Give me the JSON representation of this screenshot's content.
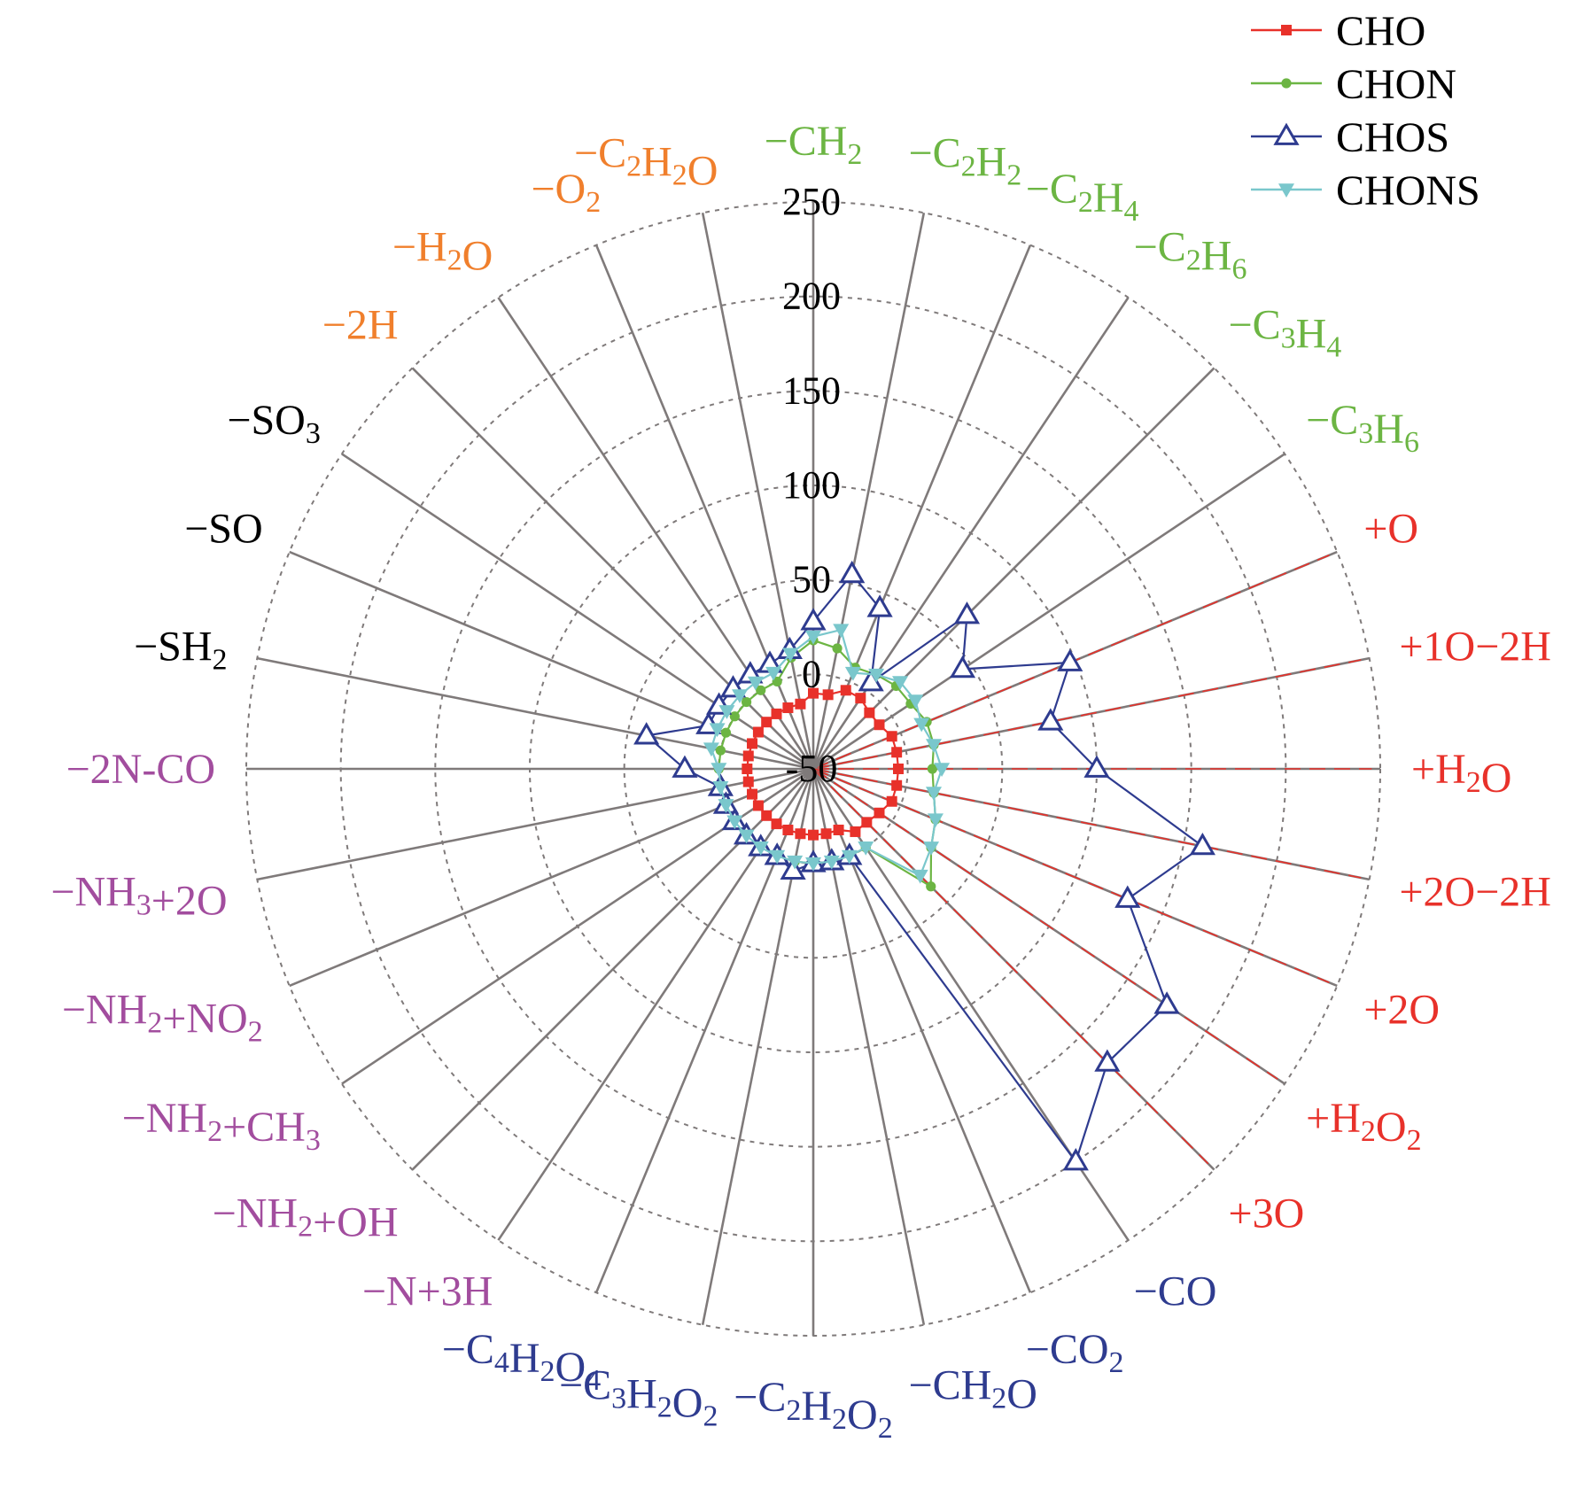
{
  "chart_data": {
    "type": "radar",
    "r_ticks": [
      "-50",
      "0",
      "50",
      "100",
      "150",
      "200",
      "250"
    ],
    "r_range": [
      -50,
      250
    ],
    "grid": true,
    "legend_position": "top-right",
    "colors": {
      "axis": "#7f7a7a",
      "grid": "#7f7a7a",
      "group_red": "#e8312a",
      "group_green": "#6cb543",
      "group_orange": "#f07f2c",
      "group_black": "#000000",
      "group_purple": "#a24d9e",
      "group_blue": "#2e3b8f"
    },
    "categories": [
      {
        "label": "+H2O",
        "parts": [
          [
            "+H",
            ""
          ],
          [
            "2",
            "sub"
          ],
          [
            "O",
            ""
          ]
        ],
        "color": "#e8312a"
      },
      {
        "label": "+1O−2H",
        "parts": [
          [
            "+1O−2H",
            ""
          ]
        ],
        "color": "#e8312a"
      },
      {
        "label": "+O",
        "parts": [
          [
            "+O",
            ""
          ]
        ],
        "color": "#e8312a"
      },
      {
        "label": "−C3H6",
        "parts": [
          [
            "−C",
            ""
          ],
          [
            "3",
            "sub"
          ],
          [
            "H",
            ""
          ],
          [
            "6",
            "sub"
          ]
        ],
        "color": "#6cb543"
      },
      {
        "label": "−C3H4",
        "parts": [
          [
            "−C",
            ""
          ],
          [
            "3",
            "sub"
          ],
          [
            "H",
            ""
          ],
          [
            "4",
            "sub"
          ]
        ],
        "color": "#6cb543"
      },
      {
        "label": "−C2H6",
        "parts": [
          [
            "−C",
            ""
          ],
          [
            "2",
            "sub"
          ],
          [
            "H",
            ""
          ],
          [
            "6",
            "sub"
          ]
        ],
        "color": "#6cb543"
      },
      {
        "label": "−C2H4",
        "parts": [
          [
            "−C",
            ""
          ],
          [
            "2",
            "sub"
          ],
          [
            "H",
            ""
          ],
          [
            "4",
            "sub"
          ]
        ],
        "color": "#6cb543"
      },
      {
        "label": "−C2H2",
        "parts": [
          [
            "−C",
            ""
          ],
          [
            "2",
            "sub"
          ],
          [
            "H",
            ""
          ],
          [
            "2",
            "sub"
          ]
        ],
        "color": "#6cb543"
      },
      {
        "label": "−CH2",
        "parts": [
          [
            "−CH",
            ""
          ],
          [
            "2",
            "sub"
          ]
        ],
        "color": "#6cb543"
      },
      {
        "label": "−C2H2O",
        "parts": [
          [
            "−C",
            ""
          ],
          [
            "2",
            "sub"
          ],
          [
            "H",
            ""
          ],
          [
            "2",
            "sub"
          ],
          [
            "O",
            ""
          ]
        ],
        "color": "#f07f2c"
      },
      {
        "label": "−O2",
        "parts": [
          [
            "−O",
            ""
          ],
          [
            "2",
            "sub"
          ]
        ],
        "color": "#f07f2c"
      },
      {
        "label": "−H2O",
        "parts": [
          [
            "−H",
            ""
          ],
          [
            "2",
            "sub"
          ],
          [
            "O",
            ""
          ]
        ],
        "color": "#f07f2c"
      },
      {
        "label": "−2H",
        "parts": [
          [
            "−2H",
            ""
          ]
        ],
        "color": "#f07f2c"
      },
      {
        "label": "−SO3",
        "parts": [
          [
            "−SO",
            ""
          ],
          [
            "3",
            "sub"
          ]
        ],
        "color": "#000000"
      },
      {
        "label": "−SO",
        "parts": [
          [
            "−SO",
            ""
          ]
        ],
        "color": "#000000"
      },
      {
        "label": "−SH2",
        "parts": [
          [
            "−SH",
            ""
          ],
          [
            "2",
            "sub"
          ]
        ],
        "color": "#000000"
      },
      {
        "label": "−2N-CO",
        "parts": [
          [
            "−2N-CO",
            ""
          ]
        ],
        "color": "#a24d9e"
      },
      {
        "label": "−NH3+2O",
        "parts": [
          [
            "−NH",
            ""
          ],
          [
            "3",
            "sub"
          ],
          [
            "+2O",
            ""
          ]
        ],
        "color": "#a24d9e"
      },
      {
        "label": "−NH2+NO2",
        "parts": [
          [
            "−NH",
            ""
          ],
          [
            "2",
            "sub"
          ],
          [
            "+NO",
            ""
          ],
          [
            "2",
            "sub"
          ]
        ],
        "color": "#a24d9e"
      },
      {
        "label": "−NH2+CH3",
        "parts": [
          [
            "−NH",
            ""
          ],
          [
            "2",
            "sub"
          ],
          [
            "+CH",
            ""
          ],
          [
            "3",
            "sub"
          ]
        ],
        "color": "#a24d9e"
      },
      {
        "label": "−NH2+OH",
        "parts": [
          [
            "−NH",
            ""
          ],
          [
            "2",
            "sub"
          ],
          [
            "+OH",
            ""
          ]
        ],
        "color": "#a24d9e"
      },
      {
        "label": "−N+3H",
        "parts": [
          [
            "−N+3H",
            ""
          ]
        ],
        "color": "#a24d9e"
      },
      {
        "label": "−C4H2O4",
        "parts": [
          [
            "−C",
            ""
          ],
          [
            "4",
            "sub"
          ],
          [
            "H",
            ""
          ],
          [
            "2",
            "sub"
          ],
          [
            "O",
            ""
          ],
          [
            "4",
            "sub"
          ]
        ],
        "color": "#2e3b8f"
      },
      {
        "label": "−C3H2O2",
        "parts": [
          [
            "−C",
            ""
          ],
          [
            "3",
            "sub"
          ],
          [
            "H",
            ""
          ],
          [
            "2",
            "sub"
          ],
          [
            "O",
            ""
          ],
          [
            "2",
            "sub"
          ]
        ],
        "color": "#2e3b8f"
      },
      {
        "label": "−C2H2O2",
        "parts": [
          [
            "−C",
            ""
          ],
          [
            "2",
            "sub"
          ],
          [
            "H",
            ""
          ],
          [
            "2",
            "sub"
          ],
          [
            "O",
            ""
          ],
          [
            "2",
            "sub"
          ]
        ],
        "color": "#2e3b8f"
      },
      {
        "label": "−CH2O",
        "parts": [
          [
            "−CH",
            ""
          ],
          [
            "2",
            "sub"
          ],
          [
            "O",
            ""
          ]
        ],
        "color": "#2e3b8f"
      },
      {
        "label": "−CO2",
        "parts": [
          [
            "−CO",
            ""
          ],
          [
            "2",
            "sub"
          ]
        ],
        "color": "#2e3b8f"
      },
      {
        "label": "−CO",
        "parts": [
          [
            "−CO",
            ""
          ]
        ],
        "color": "#2e3b8f"
      },
      {
        "label": "+3O",
        "parts": [
          [
            "+3O",
            ""
          ]
        ],
        "color": "#e8312a"
      },
      {
        "label": "+H2O2",
        "parts": [
          [
            "+H",
            ""
          ],
          [
            "2",
            "sub"
          ],
          [
            "O",
            ""
          ],
          [
            "2",
            "sub"
          ]
        ],
        "color": "#e8312a"
      },
      {
        "label": "+2O",
        "parts": [
          [
            "+2O",
            ""
          ]
        ],
        "color": "#e8312a"
      },
      {
        "label": "+2O−2H",
        "parts": [
          [
            "+2O−2H",
            ""
          ]
        ],
        "color": "#e8312a"
      }
    ],
    "series": [
      {
        "name": "CHO",
        "color": "#e8312a",
        "marker": "square",
        "values": [
          -5,
          -5,
          -5,
          -8,
          -8,
          -5,
          -5,
          -10,
          -10,
          -15,
          -15,
          -15,
          -15,
          -15,
          -15,
          -15,
          -15,
          -15,
          -15,
          -15,
          -15,
          -15,
          -15,
          -15,
          -15,
          -15,
          -15,
          -10,
          -10,
          -8,
          -5,
          -5
        ]
      },
      {
        "name": "CHON",
        "color": "#6cb543",
        "marker": "circle",
        "values": [
          13,
          15,
          15,
          12,
          12,
          10,
          8,
          15,
          18,
          10,
          0,
          0,
          0,
          0,
          0,
          0,
          0,
          0,
          0,
          0,
          0,
          0,
          0,
          0,
          0,
          0,
          0,
          0,
          38,
          25,
          20,
          15
        ]
      },
      {
        "name": "CHOS",
        "color": "#2e3b8f",
        "marker": "triangle-up",
        "values": [
          100,
          78,
          97,
          45,
          65,
          5,
          42,
          55,
          28,
          14,
          10,
          10,
          10,
          10,
          10,
          40,
          18,
          0,
          0,
          0,
          0,
          0,
          0,
          5,
          0,
          0,
          0,
          200,
          170,
          175,
          130,
          160
        ]
      },
      {
        "name": "CHONS",
        "color": "#7ac7cc",
        "marker": "triangle-down",
        "values": [
          18,
          15,
          12,
          15,
          15,
          10,
          5,
          25,
          20,
          12,
          5,
          5,
          5,
          5,
          5,
          5,
          0,
          0,
          0,
          0,
          0,
          0,
          0,
          0,
          0,
          0,
          0,
          0,
          30,
          25,
          20,
          15
        ]
      }
    ]
  }
}
